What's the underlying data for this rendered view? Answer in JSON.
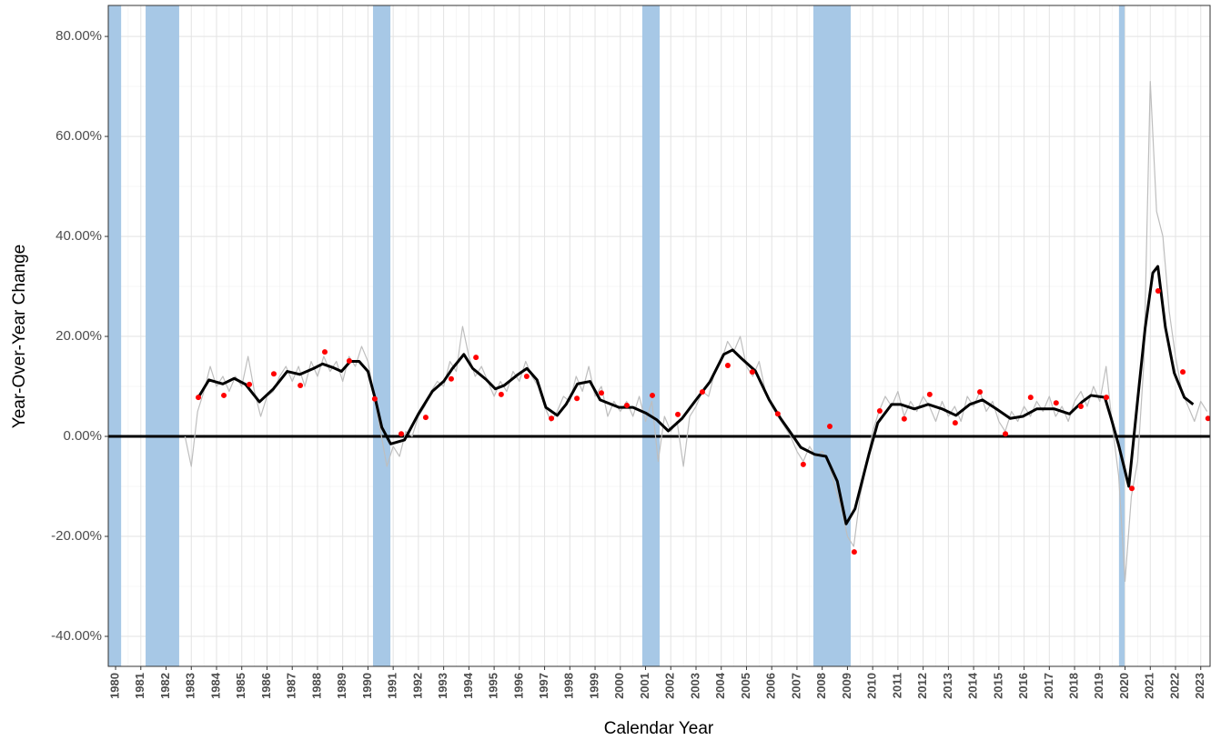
{
  "chart_data": {
    "type": "line",
    "x_label": "Calendar Year",
    "y_label": "Year-Over-Year Change",
    "xlim": [
      1979.71,
      2023.37
    ],
    "ylim": [
      -46,
      86.2
    ],
    "xticks": [
      1980,
      1981,
      1982,
      1983,
      1984,
      1985,
      1986,
      1987,
      1988,
      1989,
      1990,
      1991,
      1992,
      1993,
      1994,
      1995,
      1996,
      1997,
      1998,
      1999,
      2000,
      2001,
      2002,
      2003,
      2004,
      2005,
      2006,
      2007,
      2008,
      2009,
      2010,
      2011,
      2012,
      2013,
      2014,
      2015,
      2016,
      2017,
      2018,
      2019,
      2020,
      2021,
      2022,
      2023
    ],
    "yticks": [
      {
        "value": 80,
        "label": "80.00%"
      },
      {
        "value": 60,
        "label": "60.00%"
      },
      {
        "value": 40,
        "label": "40.00%"
      },
      {
        "value": 20,
        "label": "20.00%"
      },
      {
        "value": 0,
        "label": "0.00%"
      },
      {
        "value": -20,
        "label": "-20.00%"
      },
      {
        "value": -40,
        "label": "-40.00%"
      }
    ],
    "grid": true,
    "hline": 0,
    "recession_color": "#a7c8e6",
    "recessions": [
      [
        1979.71,
        1980.22
      ],
      [
        1981.19,
        1982.52
      ],
      [
        1990.2,
        1990.89
      ],
      [
        2000.87,
        2001.56
      ],
      [
        2007.65,
        2009.13
      ],
      [
        2019.76,
        2019.98
      ]
    ],
    "series": [
      {
        "type": "line",
        "color": "#bebebe",
        "width": 1.2,
        "x": [
          1982.75,
          1983,
          1983.25,
          1983.5,
          1983.75,
          1984,
          1984.25,
          1984.5,
          1984.75,
          1985,
          1985.25,
          1985.5,
          1985.75,
          1986,
          1986.25,
          1986.5,
          1986.75,
          1987,
          1987.25,
          1987.5,
          1987.75,
          1988,
          1988.25,
          1988.5,
          1988.75,
          1989,
          1989.25,
          1989.5,
          1989.75,
          1990,
          1990.25,
          1990.5,
          1990.75,
          1991,
          1991.25,
          1991.5,
          1991.75,
          1992,
          1992.25,
          1992.5,
          1992.75,
          1993,
          1993.25,
          1993.5,
          1993.75,
          1994,
          1994.25,
          1994.5,
          1994.75,
          1995,
          1995.25,
          1995.5,
          1995.75,
          1996,
          1996.25,
          1996.5,
          1996.75,
          1997,
          1997.25,
          1997.5,
          1997.75,
          1998,
          1998.25,
          1998.5,
          1998.75,
          1999,
          1999.25,
          1999.5,
          1999.75,
          2000,
          2000.25,
          2000.5,
          2000.75,
          2001,
          2001.25,
          2001.5,
          2001.75,
          2002,
          2002.25,
          2002.5,
          2002.75,
          2003,
          2003.25,
          2003.5,
          2003.75,
          2004,
          2004.25,
          2004.5,
          2004.75,
          2005,
          2005.25,
          2005.5,
          2005.75,
          2006,
          2006.25,
          2006.5,
          2006.75,
          2007,
          2007.25,
          2007.5,
          2007.75,
          2008,
          2008.25,
          2008.5,
          2008.75,
          2009,
          2009.25,
          2009.5,
          2009.75,
          2010,
          2010.25,
          2010.5,
          2010.75,
          2011,
          2011.25,
          2011.5,
          2011.75,
          2012,
          2012.25,
          2012.5,
          2012.75,
          2013,
          2013.25,
          2013.5,
          2013.75,
          2014,
          2014.25,
          2014.5,
          2014.75,
          2015,
          2015.25,
          2015.5,
          2015.75,
          2016,
          2016.25,
          2016.5,
          2016.75,
          2017,
          2017.25,
          2017.5,
          2017.75,
          2018,
          2018.25,
          2018.5,
          2018.75,
          2019,
          2019.25,
          2019.5,
          2019.75,
          2020,
          2020.25,
          2020.5,
          2020.75,
          2021,
          2021.25,
          2021.5,
          2021.75,
          2022,
          2022.25,
          2022.5,
          2022.75,
          2023,
          2023.25
        ],
        "values": [
          0,
          -6,
          5,
          9,
          14,
          10,
          12,
          9,
          12,
          10,
          16,
          9,
          4,
          8,
          9,
          12,
          14,
          11,
          14,
          10,
          15,
          12,
          16,
          13,
          15,
          11,
          16,
          14,
          18,
          15,
          8,
          1,
          -6,
          -2,
          -4,
          1,
          0,
          4,
          6,
          9,
          11,
          10,
          15,
          13,
          22,
          16,
          12,
          14,
          11,
          8,
          11,
          9,
          13,
          11,
          15,
          12,
          10,
          6,
          3,
          5,
          8,
          7,
          12,
          9,
          14,
          8,
          10,
          4,
          7,
          5,
          7,
          4,
          8,
          3,
          7,
          -5,
          4,
          1,
          3,
          -6,
          4,
          6,
          9,
          8,
          13,
          15,
          19,
          17,
          20,
          14,
          12,
          15,
          9,
          6,
          4,
          2,
          0,
          -3,
          -5,
          -2,
          -4,
          -3,
          -5,
          -10,
          -14,
          -20,
          -22,
          -12,
          -6,
          1,
          5,
          8,
          6,
          9,
          4,
          7,
          5,
          8,
          6,
          3,
          7,
          4,
          6,
          3,
          8,
          6,
          9,
          5,
          7,
          3,
          1,
          5,
          3,
          6,
          4,
          7,
          5,
          8,
          4,
          6,
          3,
          7,
          9,
          6,
          10,
          7,
          14,
          2,
          -8,
          -29,
          -12,
          -5,
          15,
          71,
          45,
          40,
          25,
          16,
          9,
          6,
          3,
          7,
          5
        ]
      },
      {
        "type": "line",
        "color": "#000000",
        "width": 3,
        "x": [
          1983.28,
          1983.7,
          1984.25,
          1984.7,
          1985.15,
          1985.7,
          1986.25,
          1986.8,
          1987.3,
          1987.85,
          1988.2,
          1988.6,
          1988.95,
          1989.3,
          1989.65,
          1990,
          1990.3,
          1990.55,
          1990.9,
          1991.45,
          1992,
          1992.55,
          1993,
          1993.35,
          1993.8,
          1994.15,
          1994.7,
          1995.05,
          1995.4,
          1995.95,
          1996.3,
          1996.7,
          1997.05,
          1997.5,
          1997.85,
          1998.3,
          1998.8,
          1999.2,
          1999.95,
          2000.5,
          2001,
          2001.45,
          2001.9,
          2002.45,
          2003,
          2003.55,
          2004.1,
          2004.45,
          2004.8,
          2005.35,
          2005.9,
          2006.35,
          2006.7,
          2007.15,
          2007.7,
          2008.15,
          2008.6,
          2008.95,
          2009.3,
          2009.85,
          2010.2,
          2010.75,
          2011.1,
          2011.65,
          2012.2,
          2012.75,
          2013.3,
          2013.85,
          2014.35,
          2014.9,
          2015.45,
          2015.95,
          2016.5,
          2017.2,
          2017.8,
          2018.3,
          2018.65,
          2019.2,
          2019.45,
          2019.75,
          2020.15,
          2020.5,
          2020.8,
          2021.1,
          2021.3,
          2021.6,
          2021.95,
          2022.35,
          2022.7
        ],
        "values": [
          7.8,
          11.3,
          10.5,
          11.6,
          10.4,
          6.9,
          9.5,
          13,
          12.4,
          13.6,
          14.5,
          13.8,
          13,
          15,
          15,
          13,
          7.3,
          1.8,
          -1.5,
          -0.7,
          4.5,
          9,
          11,
          13.6,
          16.4,
          13.6,
          11.3,
          9.5,
          10.2,
          12.4,
          13.6,
          11.3,
          5.8,
          4.2,
          6.4,
          10.5,
          11,
          7.3,
          5.8,
          5.8,
          4.7,
          3.3,
          1.1,
          3.6,
          7.3,
          10.9,
          16.4,
          17.3,
          15.6,
          13.1,
          7.3,
          3.6,
          1.1,
          -2.2,
          -3.6,
          -4,
          -9,
          -17.5,
          -14.5,
          -3.6,
          2.7,
          6.4,
          6.4,
          5.5,
          6.4,
          5.5,
          4.2,
          6.4,
          7.3,
          5.5,
          3.6,
          4,
          5.5,
          5.5,
          4.5,
          6.9,
          8.2,
          7.8,
          3.6,
          -1.8,
          -10,
          7.3,
          21.8,
          32.7,
          34,
          21.8,
          12.7,
          7.8,
          6.4
        ]
      },
      {
        "type": "scatter",
        "color": "#ff0000",
        "x": [
          1983.28,
          1984.29,
          1985.3,
          1986.27,
          1987.32,
          1988.29,
          1989.26,
          1990.27,
          1991.32,
          1992.29,
          1993.3,
          1994.28,
          1995.28,
          1996.29,
          1997.27,
          1998.28,
          1999.25,
          2000.26,
          2001.27,
          2002.28,
          2003.25,
          2004.26,
          2005.23,
          2006.24,
          2007.25,
          2008.3,
          2009.27,
          2010.28,
          2011.25,
          2012.26,
          2013.27,
          2014.25,
          2015.26,
          2016.26,
          2017.27,
          2018.25,
          2019.26,
          2020.27,
          2021.31,
          2022.29,
          2023.29
        ],
        "values": [
          7.8,
          8.2,
          10.4,
          12.5,
          10.2,
          16.9,
          15.1,
          7.5,
          0.5,
          3.8,
          11.5,
          15.8,
          8.4,
          12,
          3.6,
          7.6,
          8.7,
          6.2,
          8.2,
          4.4,
          8.9,
          14.2,
          12.9,
          4.5,
          -5.6,
          2,
          -23.1,
          5.1,
          3.5,
          8.4,
          2.7,
          8.9,
          0.5,
          7.8,
          6.7,
          6,
          7.8,
          -10.4,
          29.1,
          12.9,
          3.6
        ]
      }
    ]
  }
}
